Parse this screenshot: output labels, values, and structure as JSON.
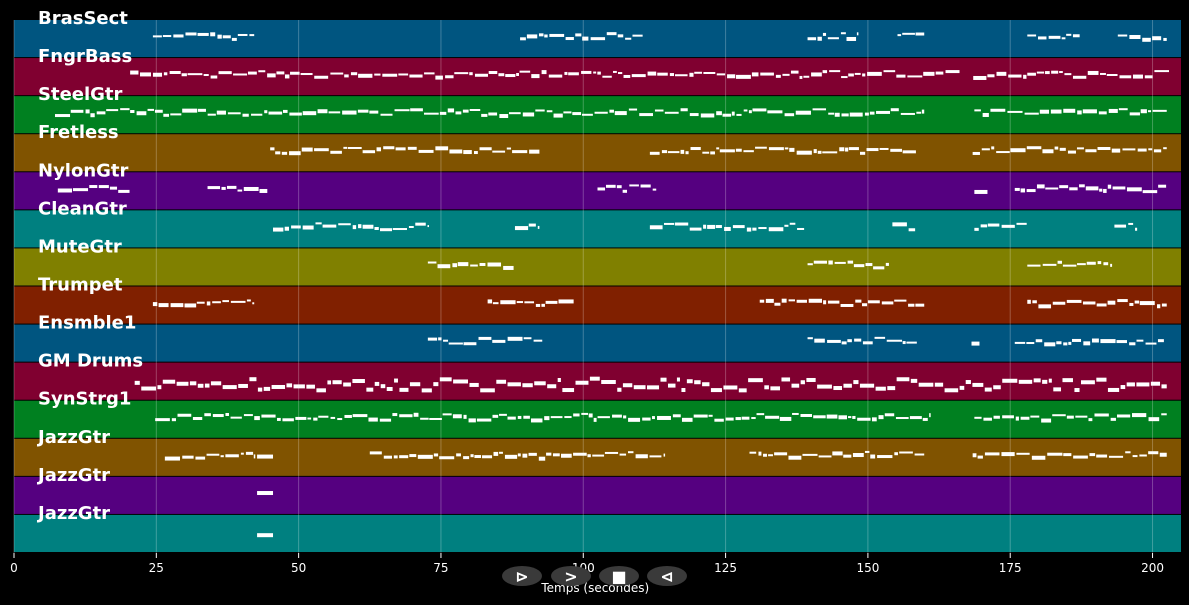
{
  "chart_data": {
    "type": "piano-roll",
    "xlabel": "Temps (secondes)",
    "xlim": [
      0,
      205
    ],
    "xticks": [
      0,
      25,
      50,
      75,
      100,
      125,
      150,
      175,
      200
    ],
    "grid": true,
    "note_color": "#ffffff",
    "tracks": [
      {
        "name": "BrasSect",
        "color": "#005580",
        "segments": [
          [
            24.4,
            42.3
          ],
          [
            88.9,
            110.6
          ],
          [
            139.4,
            148.2
          ],
          [
            155.2,
            160
          ],
          [
            178,
            187.3
          ],
          [
            193.9,
            202.6
          ]
        ]
      },
      {
        "name": "FngrBass",
        "color": "#800030",
        "segments": [
          [
            20.4,
            166.2
          ],
          [
            168.5,
            203
          ]
        ]
      },
      {
        "name": "SteelGtr",
        "color": "#008020",
        "segments": [
          [
            7.2,
            20.4
          ],
          [
            20.4,
            160
          ],
          [
            168.7,
            202.6
          ]
        ]
      },
      {
        "name": "Fretless",
        "color": "#805300",
        "segments": [
          [
            45,
            92.4
          ],
          [
            111.7,
            158.7
          ],
          [
            168.4,
            202.6
          ]
        ]
      },
      {
        "name": "NylonGtr",
        "color": "#550080",
        "segments": [
          [
            7.7,
            20.4
          ],
          [
            34,
            44.6
          ],
          [
            102.5,
            113
          ],
          [
            168.7,
            171
          ],
          [
            175.8,
            202.6
          ]
        ]
      },
      {
        "name": "CleanGtr",
        "color": "#008080",
        "segments": [
          [
            45.5,
            73
          ],
          [
            88,
            92.4
          ],
          [
            111.7,
            138.9
          ],
          [
            154.3,
            158.4
          ],
          [
            168.7,
            178
          ],
          [
            193.3,
            197.4
          ]
        ]
      },
      {
        "name": "MuteGtr",
        "color": "#808000",
        "segments": [
          [
            72.7,
            88
          ],
          [
            139.4,
            153.8
          ],
          [
            178,
            193
          ]
        ]
      },
      {
        "name": "Trumpet",
        "color": "#802000",
        "segments": [
          [
            24.4,
            42.3
          ],
          [
            83.2,
            98.5
          ],
          [
            131,
            160
          ],
          [
            178,
            202.6
          ]
        ]
      },
      {
        "name": "Ensmble1",
        "color": "#005580",
        "segments": [
          [
            72.7,
            92.9
          ],
          [
            139.4,
            158.7
          ],
          [
            168.2,
            169.6
          ],
          [
            175.8,
            202.1
          ]
        ]
      },
      {
        "name": "GM Drums",
        "color": "#800030",
        "segments": [
          [
            21.2,
            202.6
          ]
        ]
      },
      {
        "name": "SynStrg1",
        "color": "#008020",
        "segments": [
          [
            24.8,
            160.8
          ],
          [
            168.7,
            202.6
          ]
        ]
      },
      {
        "name": "JazzGtr",
        "color": "#805300",
        "segments": [
          [
            26.5,
            42.3
          ],
          [
            42.7,
            45.5
          ],
          [
            62.5,
            114.3
          ],
          [
            129.2,
            160
          ],
          [
            168.4,
            202.6
          ]
        ]
      },
      {
        "name": "JazzGtr",
        "color": "#550080",
        "segments": [
          [
            42.7,
            45.5
          ]
        ]
      },
      {
        "name": "JazzGtr",
        "color": "#008080",
        "segments": [
          [
            42.7,
            45.5
          ]
        ]
      }
    ]
  },
  "controls": {
    "play": "⊳",
    "forward": ">",
    "stop": "■",
    "back": "⊲"
  }
}
